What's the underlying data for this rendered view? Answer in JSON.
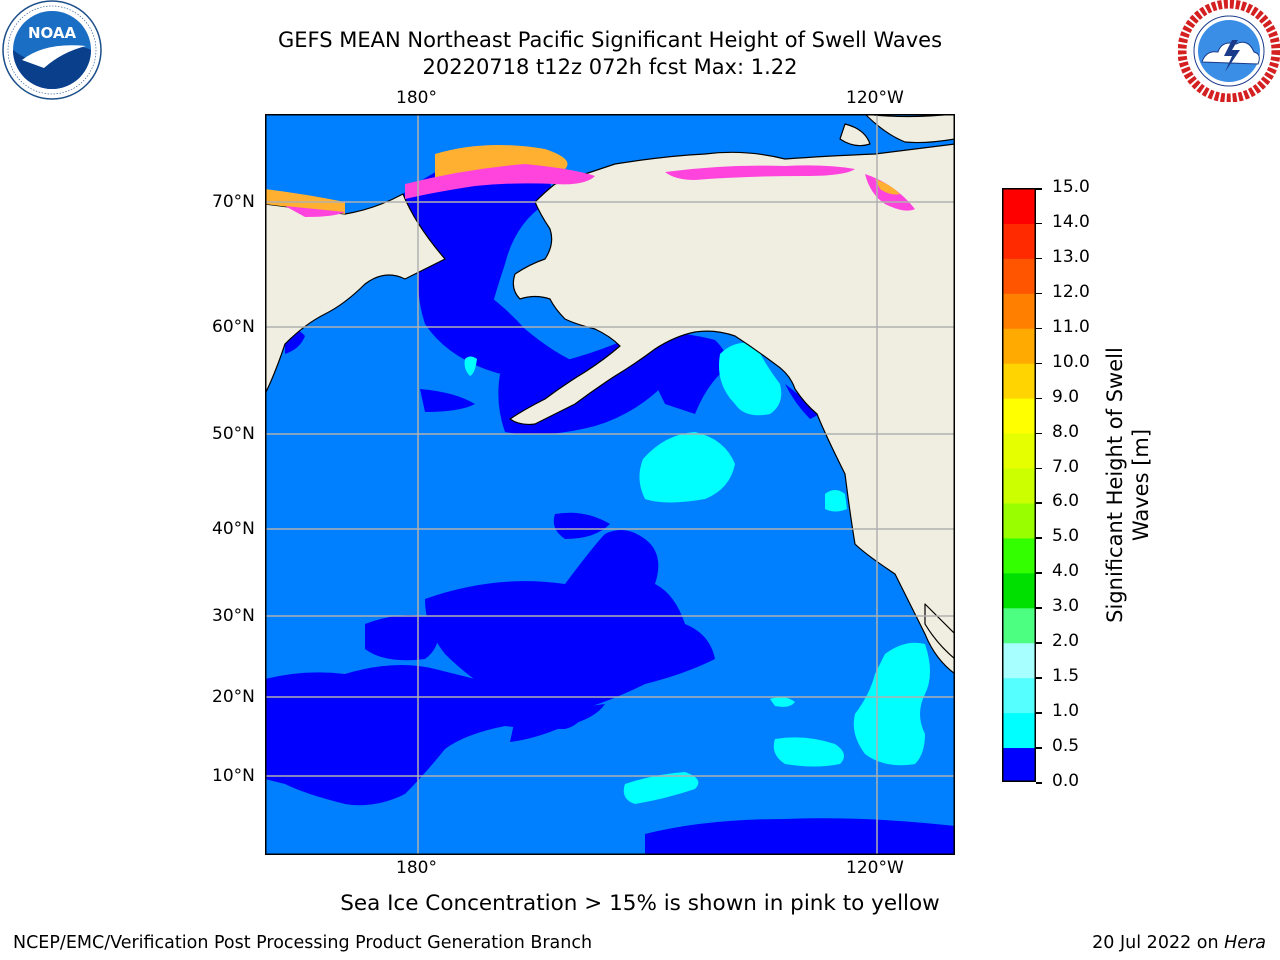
{
  "title": {
    "line1": "GEFS MEAN Northeast Pacific Significant Height of Swell Waves",
    "line2": "20220718 t12z 072h fcst   Max: 1.22"
  },
  "logos": {
    "noaa": {
      "text": "NOAA",
      "ring": "NATIONAL OCEANIC AND ATMOSPHERIC ADMINISTRATION · U.S. DEPARTMENT OF COMMERCE"
    },
    "nws": {
      "ring": "NATIONAL WEATHER SERVICE"
    }
  },
  "map": {
    "lon_top": [
      "180°",
      "120°W"
    ],
    "lon_bottom": [
      "180°",
      "120°W"
    ],
    "lat": [
      "70°N",
      "60°N",
      "50°N",
      "40°N",
      "30°N",
      "20°N",
      "10°N"
    ],
    "colors": {
      "ocean_base": "#0080ff",
      "low": "#0000ff",
      "cyan": "#00ffff",
      "land": "#efeee0",
      "ice_pink": "#ff44dd",
      "ice_orange": "#ffb030",
      "grid": "#b0b0b0"
    }
  },
  "colorbar": {
    "label": "Significant Height of Swell Waves [m]",
    "ticks": [
      "15.0",
      "14.0",
      "13.0",
      "12.0",
      "11.0",
      "10.0",
      "9.0",
      "8.0",
      "7.0",
      "6.0",
      "5.0",
      "4.0",
      "3.0",
      "2.0",
      "1.5",
      "1.0",
      "0.5",
      "0.0"
    ],
    "colors": [
      "#ff0000",
      "#ff2a00",
      "#ff5500",
      "#ff8000",
      "#ffaa00",
      "#ffd400",
      "#ffff00",
      "#e6ff00",
      "#ccff00",
      "#99ff00",
      "#33ff00",
      "#00e000",
      "#4dff80",
      "#a8ffff",
      "#55ffff",
      "#00ffff",
      "#0080ff",
      "#0000ff"
    ]
  },
  "note": "Sea Ice Concentration > 15% is shown in pink to yellow",
  "footer": {
    "left": "NCEP/EMC/Verification Post Processing Product Generation Branch",
    "date": "20 Jul 2022 on ",
    "machine": "Hera"
  }
}
